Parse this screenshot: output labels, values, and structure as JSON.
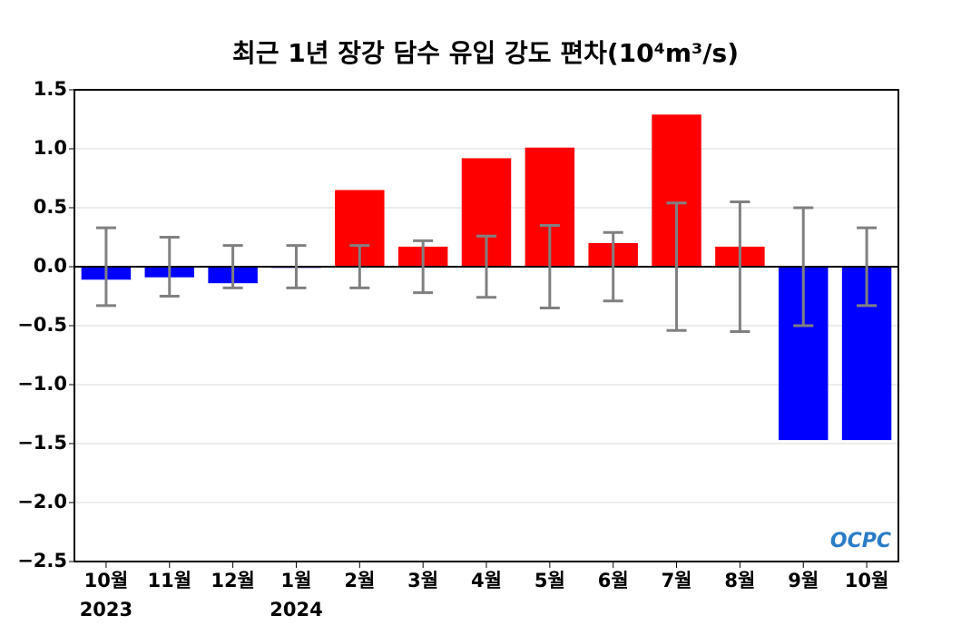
{
  "chart_data": {
    "type": "bar",
    "title": "최근 1년 장강 담수 유입 강도 편차(10⁴m³/s)",
    "categories": [
      "10월",
      "11월",
      "12월",
      "1월",
      "2월",
      "3월",
      "4월",
      "5월",
      "6월",
      "7월",
      "8월",
      "9월",
      "10월"
    ],
    "years": [
      "2023",
      null,
      null,
      "2024",
      null,
      null,
      null,
      null,
      null,
      null,
      null,
      null,
      null
    ],
    "values": [
      -0.11,
      -0.09,
      -0.14,
      -0.01,
      0.65,
      0.17,
      0.92,
      1.01,
      0.2,
      1.29,
      0.17,
      -1.47,
      -1.47
    ],
    "errors": [
      0.33,
      0.25,
      0.18,
      0.18,
      0.18,
      0.22,
      0.26,
      0.35,
      0.29,
      0.54,
      0.55,
      0.5,
      0.33
    ],
    "positive_color": "#ff0000",
    "negative_color": "#0000ff",
    "error_color": "#808080",
    "ylim": [
      -2.5,
      1.5
    ],
    "yticks": [
      {
        "value": -2.5,
        "label": "−2.5"
      },
      {
        "value": -2,
        "label": "−2.0"
      },
      {
        "value": -1.5,
        "label": "−1.5"
      },
      {
        "value": -1,
        "label": "−1.0"
      },
      {
        "value": -0.5,
        "label": "−0.5"
      },
      {
        "value": 0,
        "label": "0.0"
      },
      0.5,
      {
        "value": 1,
        "label": "1.0"
      },
      1.5
    ],
    "grid": true,
    "logo": "OCPC"
  }
}
